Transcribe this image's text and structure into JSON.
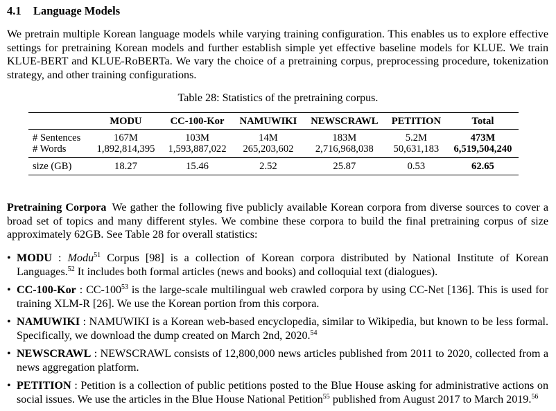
{
  "section": {
    "number": "4.1",
    "title": "Language Models"
  },
  "intro": "We pretrain multiple Korean language models while varying training configuration. This enables us to explore effective settings for pretraining Korean models and further establish simple yet effective baseline models for KLUE. We train KLUE-BERT and KLUE-RoBERTa. We vary the choice of a pretraining corpus, preprocessing procedure, tokenization strategy, and other training configurations.",
  "table": {
    "caption": "Table 28: Statistics of the pretraining corpus.",
    "columns": [
      "",
      "MODU",
      "CC-100-Kor",
      "NAMUWIKI",
      "NEWSCRAWL",
      "PETITION",
      "Total"
    ],
    "rows": [
      {
        "label": "# Sentences",
        "values": [
          "167M",
          "103M",
          "14M",
          "183M",
          "5.2M"
        ],
        "total": "473M"
      },
      {
        "label": "# Words",
        "values": [
          "1,892,814,395",
          "1,593,887,022",
          "265,203,602",
          "2,716,968,038",
          "50,631,183"
        ],
        "total": "6,519,504,240"
      },
      {
        "label": "size (GB)",
        "values": [
          "18.27",
          "15.46",
          "2.52",
          "25.87",
          "0.53"
        ],
        "total": "62.65"
      }
    ]
  },
  "corpora_paragraph": {
    "heading": "Pretraining Corpora",
    "text": "We gather the following five publicly available Korean corpora from diverse sources to cover a broad set of topics and many different styles. We combine these corpora to build the final pretraining corpus of size approximately 62GB. See Table 28 for overall statistics:"
  },
  "bullets": {
    "marker": "•",
    "modu": {
      "name": "MODU",
      "sep": " : ",
      "italic": "Modu",
      "fn1": "51",
      "text1": " Corpus [98] is a collection of Korean corpora distributed by National Institute of Korean Languages.",
      "fn2": "52",
      "text2": " It includes both formal articles (news and books) and colloquial text (dialogues)."
    },
    "cc100": {
      "name": "CC-100-Kor",
      "sep": " : ",
      "text1": "CC-100",
      "fn1": "53",
      "text2": " is the large-scale multilingual web crawled corpora by using CC-Net [136]. This is used for training XLM-R [26]. We use the Korean portion from this corpora."
    },
    "namuwiki": {
      "name": "NAMUWIKI",
      "sep": " : ",
      "text1": "NAMUWIKI is a Korean web-based encyclopedia, similar to Wikipedia, but known to be less formal. Specifically, we download the dump created on March 2nd, 2020.",
      "fn1": "54"
    },
    "newscrawl": {
      "name": "NEWSCRAWL",
      "sep": " : ",
      "text1": "NEWSCRAWL consists of 12,800,000 news articles published from 2011 to 2020, collected from a news aggregation platform."
    },
    "petition": {
      "name": "PETITION",
      "sep": " : ",
      "text1": "Petition is a collection of public petitions posted to the Blue House asking for administrative actions on social issues. We use the articles in the Blue House National Petition",
      "fn1": "55",
      "text2": " published from August 2017 to March 2019.",
      "fn2": "56"
    }
  }
}
